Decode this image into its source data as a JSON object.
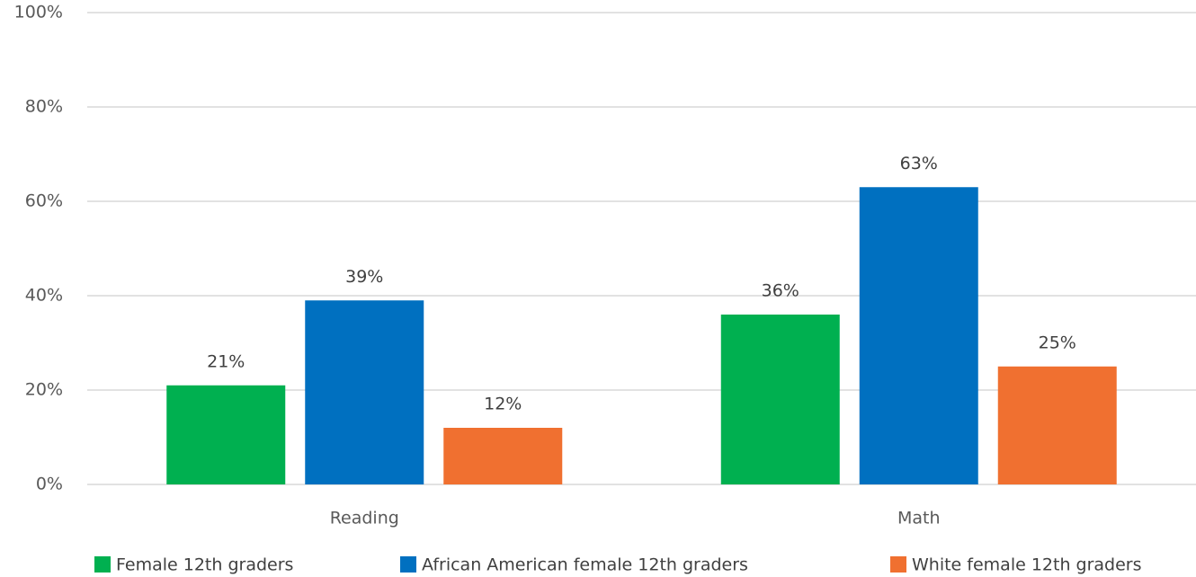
{
  "chart_data": {
    "type": "bar",
    "categories": [
      "Reading",
      "Math"
    ],
    "series": [
      {
        "name": "Female 12th graders",
        "color": "#00b050",
        "values": [
          21,
          36
        ],
        "value_labels": [
          "21%",
          "36%"
        ]
      },
      {
        "name": "African American female 12th graders",
        "color": "#0070c0",
        "values": [
          39,
          63
        ],
        "value_labels": [
          "39%",
          "63%"
        ]
      },
      {
        "name": "White female 12th graders",
        "color": "#f07030",
        "values": [
          12,
          25
        ],
        "value_labels": [
          "12%",
          "25%"
        ]
      }
    ],
    "ylim": [
      0,
      100
    ],
    "yticks": [
      {
        "value": 0,
        "label": "0%"
      },
      {
        "value": 20,
        "label": "20%"
      },
      {
        "value": 40,
        "label": "40%"
      },
      {
        "value": 60,
        "label": "60%"
      },
      {
        "value": 80,
        "label": "80%"
      },
      {
        "value": 100,
        "label": "100%"
      }
    ],
    "grid": true,
    "legend": "bottom"
  }
}
